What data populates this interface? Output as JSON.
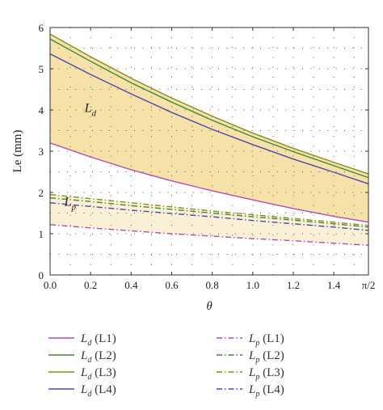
{
  "chart_data": {
    "type": "line",
    "xlabel": "θ",
    "ylabel": "Le (mm)",
    "xlim": [
      0,
      1.5708
    ],
    "ylim": [
      0,
      6
    ],
    "grid": "dotted",
    "x_ticks": [
      0,
      0.2,
      0.4,
      0.6,
      0.8,
      1.0,
      1.2,
      1.4,
      1.5708
    ],
    "x_tick_labels": [
      "0.0",
      "0.2",
      "0.4",
      "0.6",
      "0.8",
      "1.0",
      "1.2",
      "1.4",
      "π/2"
    ],
    "y_ticks": [
      0,
      1,
      2,
      3,
      4,
      5,
      6
    ],
    "y_tick_labels": [
      "0",
      "1",
      "2",
      "3",
      "4",
      "5",
      "6"
    ],
    "x": [
      0,
      0.2,
      0.4,
      0.6,
      0.8,
      1.0,
      1.2,
      1.4,
      1.5708
    ],
    "series": [
      {
        "name": "L1",
        "symbol": "L",
        "sub": "d",
        "style": "solid",
        "color": "#b04fb0",
        "values": [
          3.2,
          2.86,
          2.55,
          2.28,
          2.04,
          1.82,
          1.61,
          1.42,
          1.28
        ]
      },
      {
        "name": "L2",
        "symbol": "L",
        "sub": "d",
        "style": "solid",
        "color": "#3c8c30",
        "values": [
          5.72,
          5.18,
          4.66,
          4.19,
          3.75,
          3.35,
          2.99,
          2.65,
          2.36
        ]
      },
      {
        "name": "L3",
        "symbol": "L",
        "sub": "d",
        "style": "solid",
        "color": "#8c8a20",
        "values": [
          5.84,
          5.29,
          4.77,
          4.29,
          3.85,
          3.44,
          3.07,
          2.73,
          2.45
        ]
      },
      {
        "name": "L4",
        "symbol": "L",
        "sub": "d",
        "style": "solid",
        "color": "#4a4aa8",
        "values": [
          5.36,
          4.86,
          4.39,
          3.94,
          3.53,
          3.16,
          2.81,
          2.49,
          2.21
        ]
      },
      {
        "name": "L1",
        "symbol": "L",
        "sub": "p",
        "style": "dashdot",
        "color": "#b04fb0",
        "values": [
          1.22,
          1.14,
          1.07,
          1.0,
          0.94,
          0.88,
          0.83,
          0.77,
          0.72
        ]
      },
      {
        "name": "L2",
        "symbol": "L",
        "sub": "p",
        "style": "dashdot",
        "color": "#3c8c30",
        "values": [
          1.87,
          1.78,
          1.68,
          1.59,
          1.5,
          1.41,
          1.33,
          1.24,
          1.16
        ]
      },
      {
        "name": "L3",
        "symbol": "L",
        "sub": "p",
        "style": "dashdot",
        "color": "#8c8a20",
        "values": [
          1.95,
          1.85,
          1.75,
          1.65,
          1.55,
          1.46,
          1.37,
          1.28,
          1.2
        ]
      },
      {
        "name": "L4",
        "symbol": "L",
        "sub": "p",
        "style": "dashdot",
        "color": "#4a4aa8",
        "values": [
          1.75,
          1.66,
          1.57,
          1.49,
          1.41,
          1.32,
          1.24,
          1.16,
          1.08
        ]
      }
    ],
    "bands": [
      {
        "between": [
          "Ld L1",
          "Ld L3"
        ],
        "color": "#f6e2a8"
      },
      {
        "between": [
          "Lp L1",
          "Lp L3"
        ],
        "color": "#faf0d6"
      }
    ],
    "annotations": [
      {
        "symbol": "L",
        "sub": "d",
        "x": 0.17,
        "y": 3.95
      },
      {
        "symbol": "L",
        "sub": "p",
        "x": 0.07,
        "y": 1.68
      }
    ],
    "legend": {
      "placement": "below",
      "columns": 2,
      "entries": [
        "Ld (L1)",
        "Ld (L2)",
        "Ld (L3)",
        "Ld (L4)",
        "Lp (L1)",
        "Lp (L2)",
        "Lp (L3)",
        "Lp (L4)"
      ]
    }
  }
}
